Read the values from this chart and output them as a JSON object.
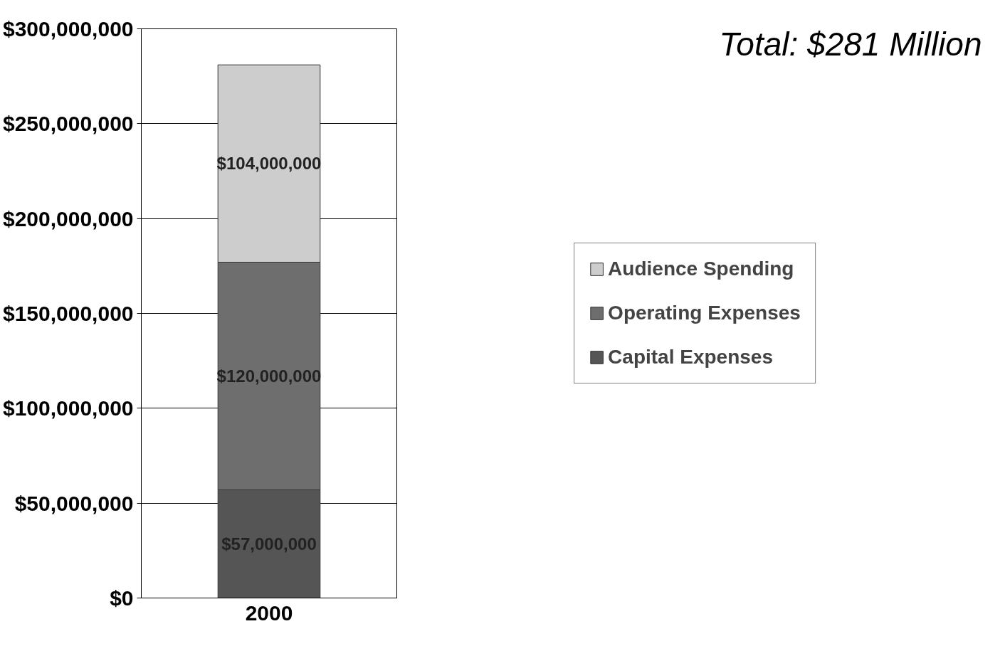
{
  "chart_data": {
    "type": "bar",
    "stacked": true,
    "categories": [
      "2000"
    ],
    "series": [
      {
        "name": "Capital Expenses",
        "color": "#555555",
        "values": [
          57000000
        ],
        "value_labels": [
          "$57,000,000"
        ]
      },
      {
        "name": "Operating Expenses",
        "color": "#6e6e6e",
        "values": [
          120000000
        ],
        "value_labels": [
          "$120,000,000"
        ]
      },
      {
        "name": "Audience Spending",
        "color": "#cdcdcd",
        "values": [
          104000000
        ],
        "value_labels": [
          "$104,000,000"
        ]
      }
    ],
    "ylim": [
      0,
      300000000
    ],
    "yticks": [
      {
        "value": 0,
        "label": "$0"
      },
      {
        "value": 50000000,
        "label": "$50,000,000"
      },
      {
        "value": 100000000,
        "label": "$100,000,000"
      },
      {
        "value": 150000000,
        "label": "$150,000,000"
      },
      {
        "value": 200000000,
        "label": "$200,000,000"
      },
      {
        "value": 250000000,
        "label": "$250,000,000"
      },
      {
        "value": 300000000,
        "label": "$300,000,000"
      }
    ],
    "grid": "y",
    "legend": "right",
    "annotations": [
      "Total: $281 Million"
    ]
  }
}
